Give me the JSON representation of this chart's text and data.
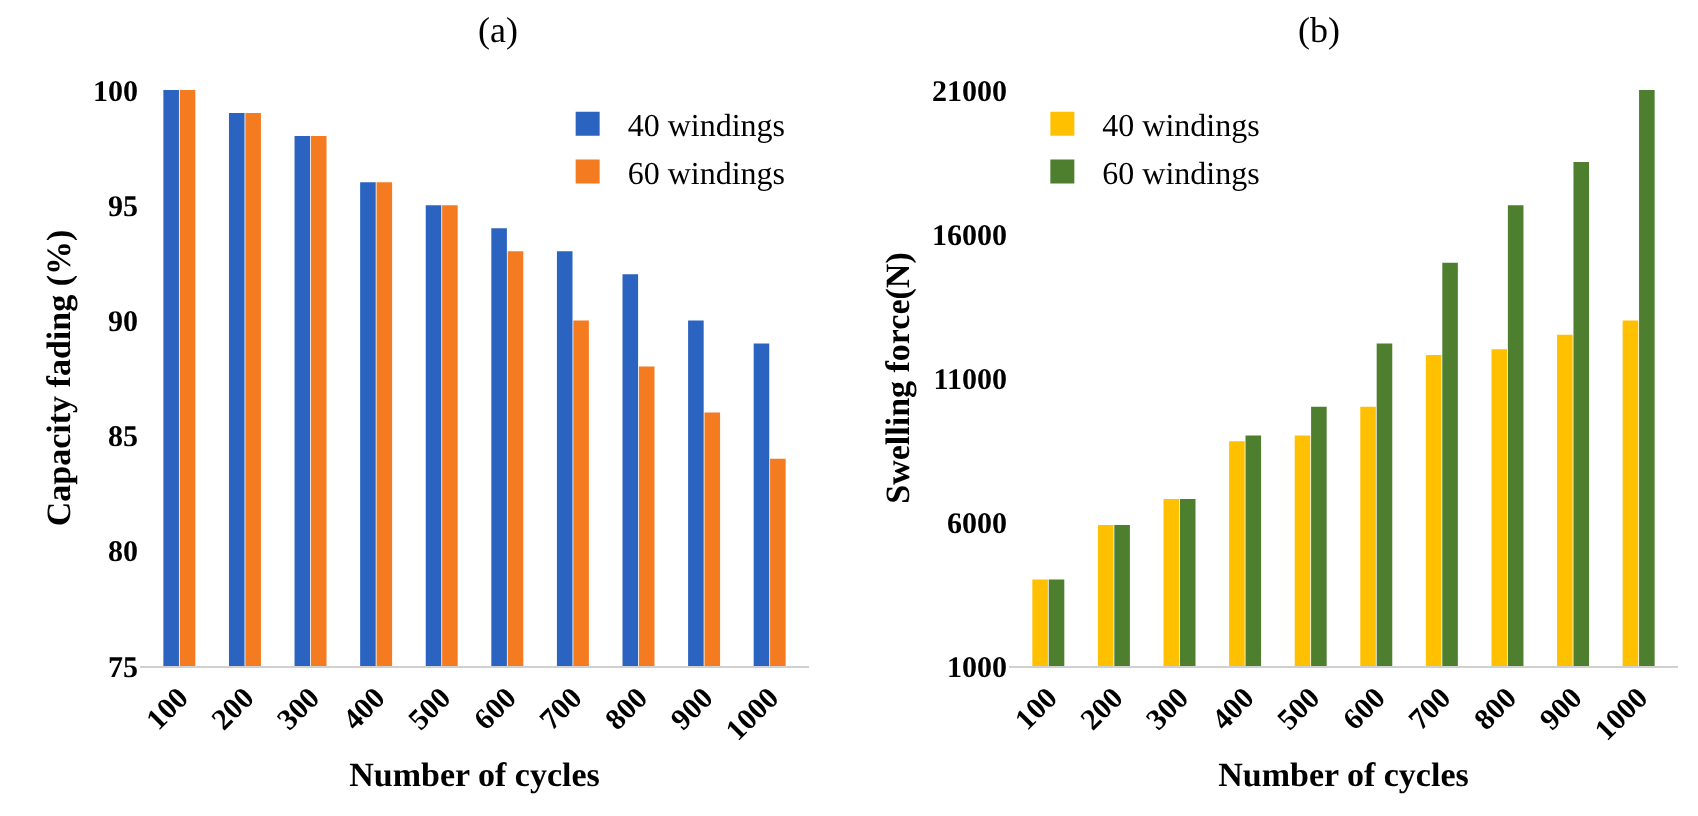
{
  "chart_data": [
    {
      "type": "bar",
      "title": "(a)",
      "xlabel": "Number of cycles",
      "ylabel": "Capacity fading (%)",
      "categories": [
        "100",
        "200",
        "300",
        "400",
        "500",
        "600",
        "700",
        "800",
        "900",
        "1000"
      ],
      "series": [
        {
          "name": "40 windings",
          "color": "#2b63c1",
          "values": [
            100,
            99,
            98,
            96,
            95,
            94,
            93,
            92,
            90,
            89
          ]
        },
        {
          "name": "60 windings",
          "color": "#f47b20",
          "values": [
            100,
            99,
            98,
            96,
            95,
            93,
            90,
            88,
            86,
            84
          ]
        }
      ],
      "ylim": [
        75,
        100
      ],
      "yticks": [
        75,
        80,
        85,
        90,
        95,
        100
      ],
      "legend": "top right"
    },
    {
      "type": "bar",
      "title": "(b)",
      "xlabel": "Number of cycles",
      "ylabel": "Swelling force(N)",
      "categories": [
        "100",
        "200",
        "300",
        "400",
        "500",
        "600",
        "700",
        "800",
        "900",
        "1000"
      ],
      "series": [
        {
          "name": "40 windings",
          "color": "#ffc000",
          "values": [
            4000,
            5900,
            6800,
            8800,
            9000,
            10000,
            11800,
            12000,
            12500,
            13000
          ]
        },
        {
          "name": "60 windings",
          "color": "#4e7f2f",
          "values": [
            4000,
            5900,
            6800,
            9000,
            10000,
            12200,
            15000,
            17000,
            18500,
            21000
          ]
        }
      ],
      "ylim": [
        1000,
        21000
      ],
      "yticks": [
        1000,
        6000,
        11000,
        16000,
        21000
      ],
      "legend": "top left"
    }
  ]
}
